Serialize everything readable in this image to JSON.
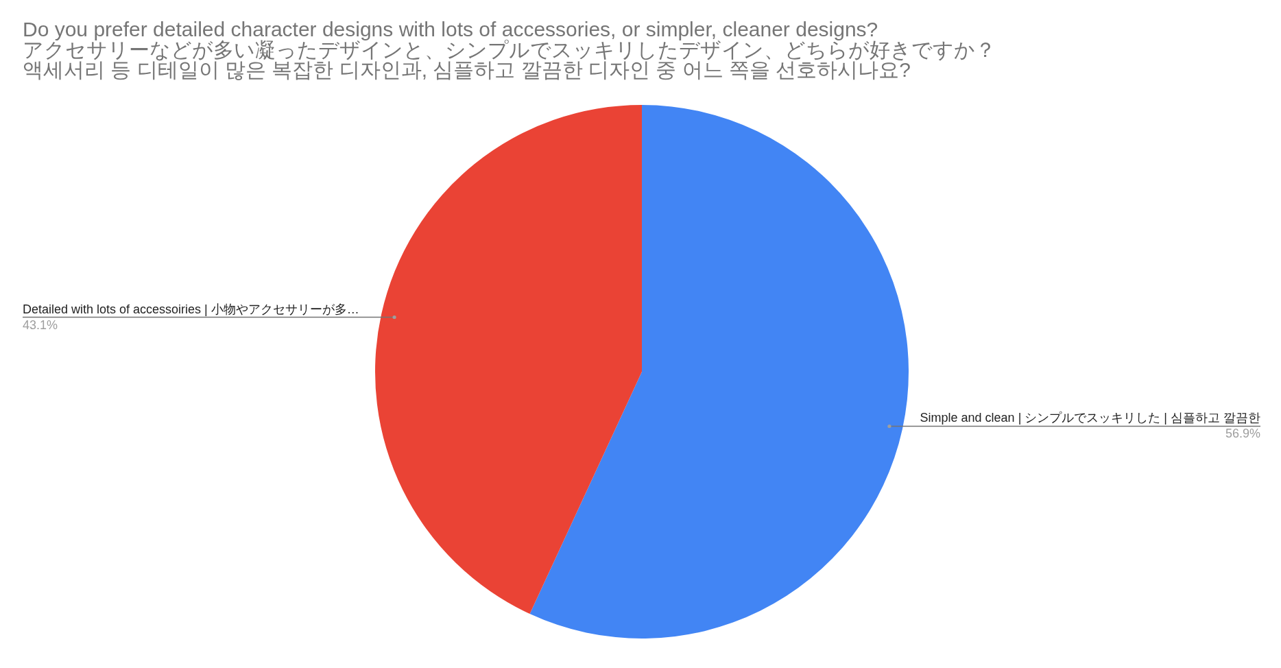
{
  "chart_data": {
    "type": "pie",
    "title": "Do you prefer detailed character designs with lots of accessories, or simpler, cleaner designs?\nアクセサリーなどが多い凝ったデザインと、シンプルでスッキリしたデザイン、どちらが好きですか？\n액세서리 등 디테일이 많은 복잡한 디자인과, 심플하고 깔끔한 디자인 중 어느 쪽을 선호하시나요?",
    "categories": [
      "Simple and clean | シンプルでスッキリした | 심플하고 깔끔한",
      "Detailed with lots of accessoiries | 小物やアクセサリーが多…"
    ],
    "values": [
      56.9,
      43.1
    ],
    "colors": [
      "#4285f4",
      "#ea4335"
    ],
    "value_labels": [
      "56.9%",
      "43.1%"
    ]
  }
}
